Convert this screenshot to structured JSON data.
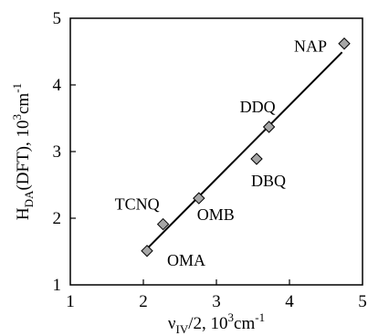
{
  "chart_data": {
    "type": "scatter",
    "title": "",
    "xlabel": {
      "base": "ν",
      "sub": "IV",
      "rest": "/2, 10",
      "sup": "3",
      "unit": "cm",
      "unit_sup": "-1"
    },
    "ylabel": {
      "base": "H",
      "sub": "DA",
      "rest": "(DFT), 10",
      "sup": "3",
      "unit": "cm",
      "unit_sup": "-1"
    },
    "xlim": [
      1,
      5
    ],
    "ylim": [
      1,
      5
    ],
    "xticks": [
      "1",
      "2",
      "3",
      "4",
      "5"
    ],
    "yticks": [
      "1",
      "2",
      "3",
      "4",
      "5"
    ],
    "grid": false,
    "marker": "diamond",
    "marker_color": "#a6a6a6",
    "points": [
      {
        "label": "OMA",
        "x": 2.05,
        "y": 1.51
      },
      {
        "label": "TCNQ",
        "x": 2.27,
        "y": 1.91
      },
      {
        "label": "OMB",
        "x": 2.76,
        "y": 2.3
      },
      {
        "label": "DBQ",
        "x": 3.55,
        "y": 2.89
      },
      {
        "label": "DDQ",
        "x": 3.72,
        "y": 3.37
      },
      {
        "label": "NAP",
        "x": 4.75,
        "y": 4.62
      }
    ],
    "fit_line": {
      "x": [
        2.03,
        4.72
      ],
      "y": [
        1.52,
        4.49
      ]
    }
  }
}
